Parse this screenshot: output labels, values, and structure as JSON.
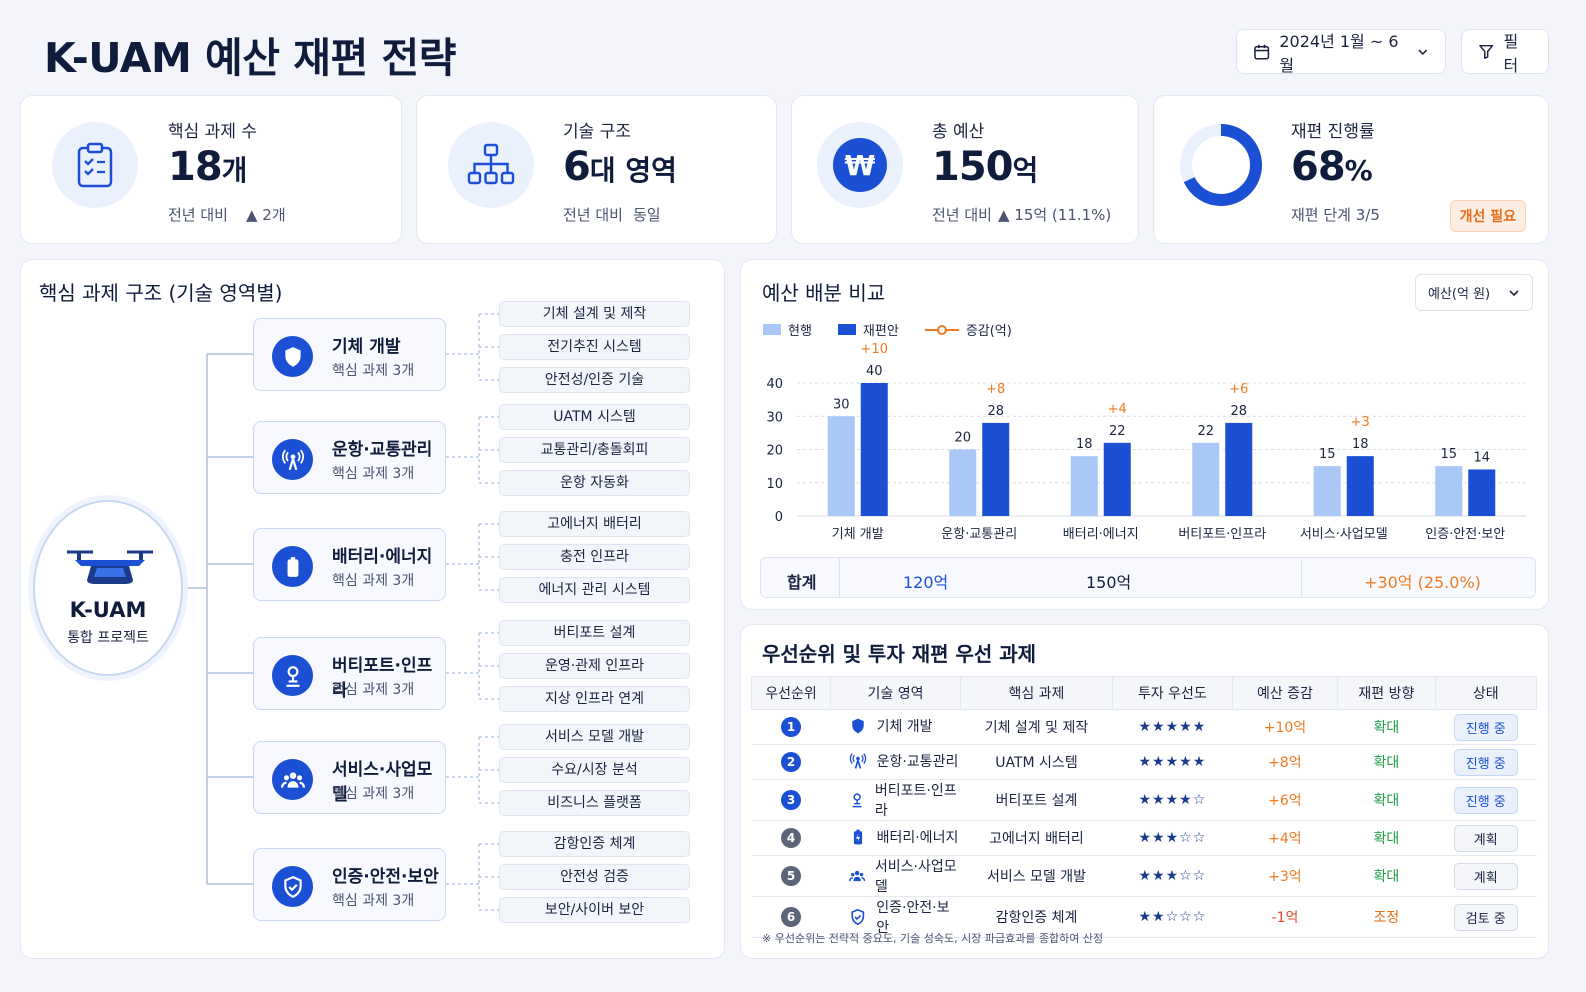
{
  "title": "K-UAM 예산 재편 전략",
  "header": {
    "date_range": "2024년 1월 ~ 6월",
    "filter_label": "필터"
  },
  "kpis": [
    {
      "label": "핵심 과제 수",
      "value": "18",
      "unit": "개",
      "sub_prefix": "전년 대비",
      "sub_value": "▲ 2개",
      "icon": "checklist-icon"
    },
    {
      "label": "기술 구조",
      "value": "6",
      "unit": "대 영역",
      "sub_prefix": "전년 대비",
      "sub_value": "동일",
      "icon": "hierarchy-icon"
    },
    {
      "label": "총 예산",
      "value": "150",
      "unit": "억",
      "sub_prefix": "전년 대비",
      "sub_value": "▲ 15억 (11.1%)",
      "icon": "won-icon"
    },
    {
      "label": "재편 진행률",
      "value": "68",
      "unit": "%",
      "sub_prefix": "재편 단계 3/5",
      "sub_value": "",
      "badge": "개선 필요",
      "progress": 0.68
    }
  ],
  "structure": {
    "title": "핵심 과제 구조 (기술 영역별)",
    "root": {
      "name": "K-UAM",
      "sub": "통합 프로젝트"
    },
    "domains": [
      {
        "name": "기체 개발",
        "sub": "핵심 과제 3개",
        "icon": "shield-icon",
        "tasks": [
          "기체 설계 및 제작",
          "전기추진 시스템",
          "안전성/인증 기술"
        ]
      },
      {
        "name": "운항·교통관리",
        "sub": "핵심 과제 3개",
        "icon": "antenna-icon",
        "tasks": [
          "UATM 시스템",
          "교통관리/충돌회피",
          "운항 자동화"
        ]
      },
      {
        "name": "배터리·에너지",
        "sub": "핵심 과제 3개",
        "icon": "battery-icon",
        "tasks": [
          "고에너지 배터리",
          "충전 인프라",
          "에너지 관리 시스템"
        ]
      },
      {
        "name": "버티포트·인프라",
        "sub": "핵심 과제 3개",
        "icon": "vertiport-icon",
        "tasks": [
          "버티포트 설계",
          "운영·관제 인프라",
          "지상 인프라 연계"
        ]
      },
      {
        "name": "서비스·사업모델",
        "sub": "핵심 과제 3개",
        "icon": "people-icon",
        "tasks": [
          "서비스 모델 개발",
          "수요/시장 분석",
          "비즈니스 플랫폼"
        ]
      },
      {
        "name": "인증·안전·보안",
        "sub": "핵심 과제 3개",
        "icon": "shield-check-icon",
        "tasks": [
          "감항인증 체계",
          "안전성 검증",
          "보안/사이버 보안"
        ]
      }
    ]
  },
  "budget": {
    "title": "예산 배분 비교",
    "unit_select": "예산(억 원)",
    "total_label": "합계",
    "total_current": "120억",
    "total_proposed": "150억",
    "total_delta": "+30억 (25.0%)"
  },
  "chart_data": {
    "type": "bar",
    "categories": [
      "기체 개발",
      "운항·교통관리",
      "배터리·에너지",
      "버티포트·인프라",
      "서비스·사업모델",
      "인증·안전·보안"
    ],
    "series": [
      {
        "name": "현행",
        "values": [
          30,
          20,
          18,
          22,
          15,
          15
        ],
        "color": "#a9c8f5"
      },
      {
        "name": "재편안",
        "values": [
          40,
          28,
          22,
          28,
          18,
          14
        ],
        "color": "#1b4fd4"
      }
    ],
    "delta": {
      "name": "증감(억)",
      "labels": [
        "+10",
        "+8",
        "+4",
        "+6",
        "+3",
        ""
      ],
      "color": "#f07a22"
    },
    "ylim": [
      0,
      40
    ],
    "yticks": [
      0,
      10,
      20,
      30,
      40
    ],
    "grid": true,
    "legend": "top-left"
  },
  "priority": {
    "title": "우선순위 및 투자 재편 우선 과제",
    "columns": [
      "우선순위",
      "기술 영역",
      "핵심 과제",
      "투자 우선도",
      "예산 증감",
      "재편 방향",
      "상태"
    ],
    "rows": [
      {
        "rank": "1",
        "icon": "shield-icon",
        "domain": "기체 개발",
        "task": "기체 설계 및 제작",
        "stars": "★★★★★",
        "delta": "+10억",
        "direction": "확대",
        "status": "진행 중",
        "active": true
      },
      {
        "rank": "2",
        "icon": "antenna-icon",
        "domain": "운항·교통관리",
        "task": "UATM 시스템",
        "stars": "★★★★★",
        "delta": "+8억",
        "direction": "확대",
        "status": "진행 중",
        "active": true
      },
      {
        "rank": "3",
        "icon": "vertiport-icon",
        "domain": "버티포트·인프라",
        "task": "버티포트 설계",
        "stars": "★★★★☆",
        "delta": "+6억",
        "direction": "확대",
        "status": "진행 중",
        "active": true
      },
      {
        "rank": "4",
        "icon": "battery-icon",
        "domain": "배터리·에너지",
        "task": "고에너지 배터리",
        "stars": "★★★☆☆",
        "delta": "+4억",
        "direction": "확대",
        "status": "계획",
        "active": false
      },
      {
        "rank": "5",
        "icon": "people-icon",
        "domain": "서비스·사업모델",
        "task": "서비스 모델 개발",
        "stars": "★★★☆☆",
        "delta": "+3억",
        "direction": "확대",
        "status": "계획",
        "active": false
      },
      {
        "rank": "6",
        "icon": "shield-check-icon",
        "domain": "인증·안전·보안",
        "task": "감항인증 체계",
        "stars": "★★☆☆☆",
        "delta": "-1억",
        "direction": "조정",
        "status": "검토 중",
        "active": false
      }
    ],
    "footnote": "※ 우선순위는 전략적 중요도, 기술 성숙도, 시장 파급효과를 종합하여 산정"
  },
  "colors": {
    "primary": "#1b4fd4",
    "light": "#a9c8f5",
    "accent": "#f07a22",
    "green": "#1f9d48",
    "dark": "#101c3c"
  }
}
